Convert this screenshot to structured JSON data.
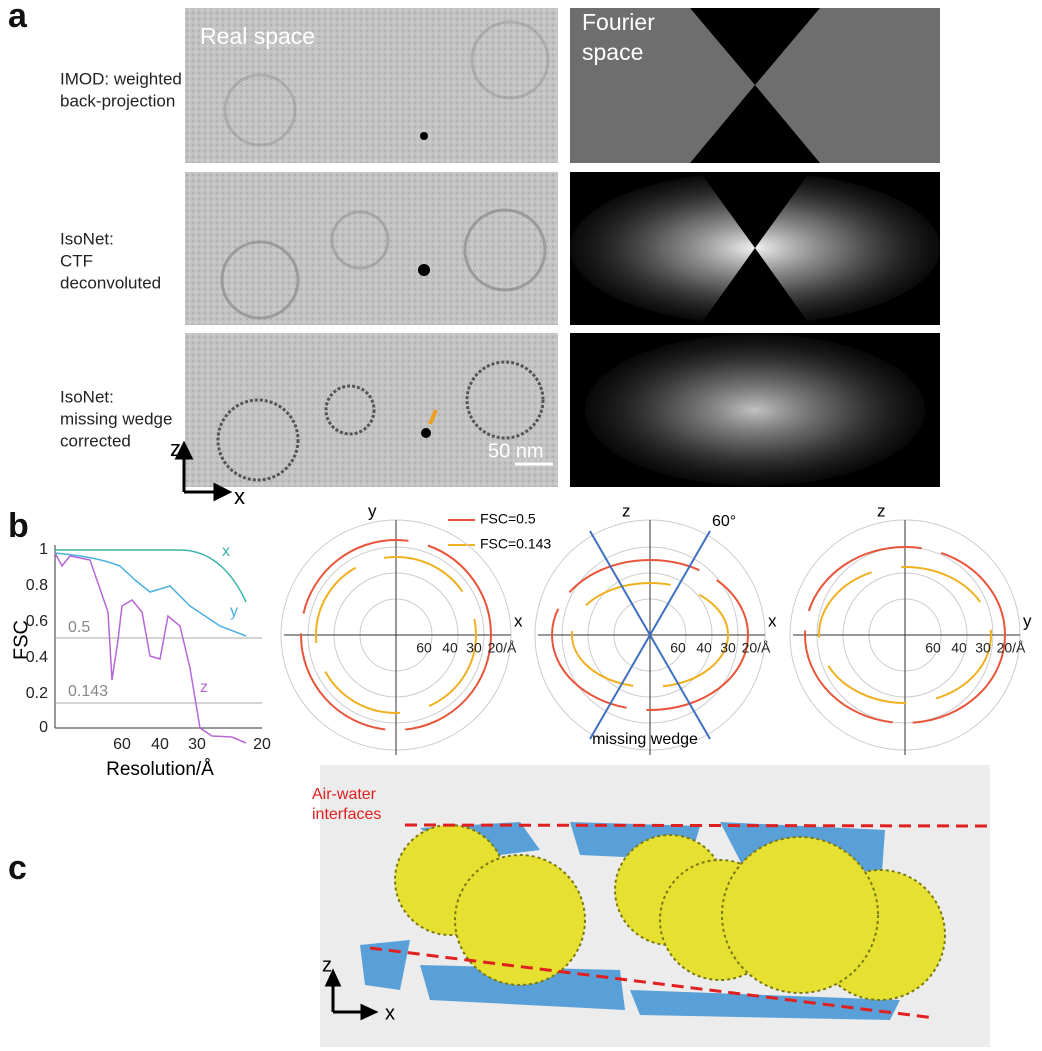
{
  "panel_a": {
    "label": "a",
    "columns": {
      "real": "Real space",
      "fourier": [
        "Fourier",
        "space"
      ]
    },
    "rows": [
      [
        "IMOD: weighted",
        "back-projection"
      ],
      [
        "IsoNet:",
        "CTF",
        "deconvoluted"
      ],
      [
        "IsoNet:",
        "missing wedge",
        "corrected"
      ]
    ],
    "scale_bar": "50 nm",
    "axes": {
      "vertical": "z",
      "horizontal": "x"
    }
  },
  "panel_b": {
    "label": "b",
    "fsc_plot": {
      "y_label": "FSC",
      "x_label": "Resolution/Å",
      "y_ticks": [
        "1",
        "0.8",
        "0.6",
        "0.4",
        "0.2",
        "0"
      ],
      "x_ticks": [
        "60",
        "40",
        "30",
        "20"
      ],
      "thresholds": [
        "0.5",
        "0.143"
      ],
      "curve_labels": [
        "x",
        "y",
        "z"
      ]
    },
    "legend": [
      "FSC=0.5",
      "FSC=0.143"
    ],
    "polar_plots": [
      {
        "vertical": "y",
        "horizontal": "x",
        "rings": [
          "60",
          "40",
          "30",
          "20/Å"
        ]
      },
      {
        "vertical": "z",
        "horizontal": "x",
        "rings": [
          "60",
          "40",
          "30",
          "20/Å"
        ],
        "angle": "60°",
        "note": "missing wedge"
      },
      {
        "vertical": "z",
        "horizontal": "y",
        "rings": [
          "60",
          "40",
          "30",
          "20/Å"
        ]
      }
    ]
  },
  "panel_c": {
    "label": "c",
    "annotation": [
      "Air-water",
      "interfaces"
    ],
    "axes": {
      "vertical": "z",
      "horizontal": "x"
    }
  }
}
